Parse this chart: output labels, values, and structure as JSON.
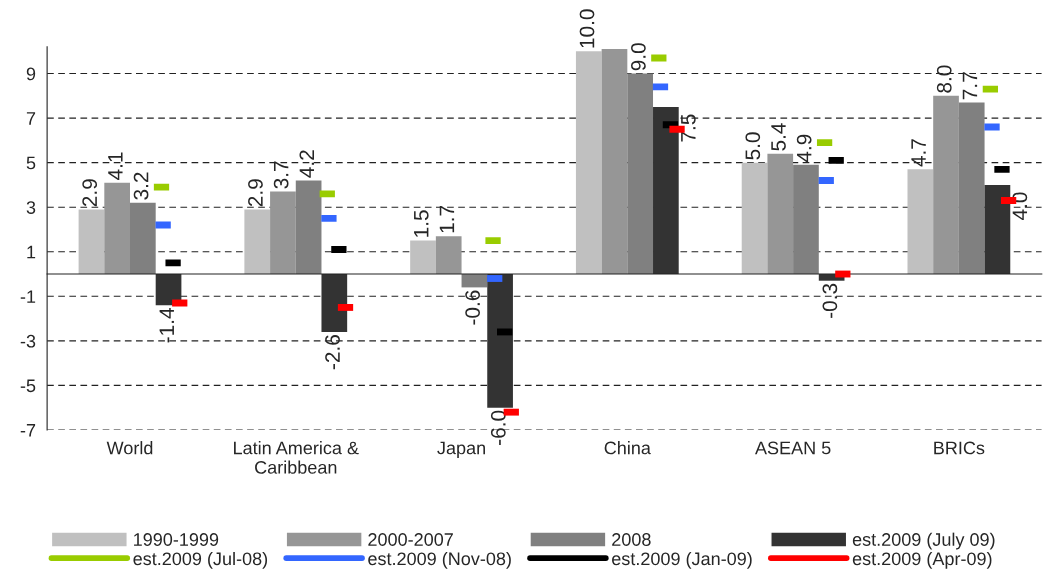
{
  "chart_data": {
    "type": "bar",
    "categories": [
      "World",
      "Latin America &\nCaribbean",
      "Japan",
      "China",
      "ASEAN 5",
      "BRICs"
    ],
    "series": [
      {
        "name": "1990-1999",
        "color": "#c0c0c0",
        "values": [
          2.9,
          2.9,
          1.5,
          10.0,
          5.0,
          4.7
        ],
        "value_labels": [
          "2.9",
          "2.9",
          "1.5",
          "10.0",
          "5.0",
          "4.7"
        ]
      },
      {
        "name": "2000-2007",
        "color": "#969696",
        "values": [
          4.1,
          3.7,
          1.7,
          10.1,
          5.4,
          8.0
        ],
        "value_labels": [
          "4.1",
          "3.7",
          "1.7",
          null,
          "5.4",
          "8.0"
        ]
      },
      {
        "name": "2008",
        "color": "#808080",
        "values": [
          3.2,
          4.2,
          -0.6,
          9.0,
          4.9,
          7.7
        ],
        "value_labels": [
          "3.2",
          "4.2",
          "-0.6",
          "9.0",
          "4.9",
          "7.7"
        ]
      },
      {
        "name": "est.2009 (July 09)",
        "color": "#333333",
        "values": [
          -1.4,
          -2.6,
          -6.0,
          7.5,
          -0.3,
          4.0
        ],
        "value_labels": [
          "-1.4",
          "-2.6",
          "-6.0",
          "7.5",
          "-0.3",
          "4.0"
        ]
      },
      {
        "name": "est.2009 (Jul-08)",
        "type": "scatter",
        "color": "#99cc00",
        "values": [
          3.9,
          3.6,
          1.5,
          9.7,
          5.9,
          8.3
        ]
      },
      {
        "name": "est.2009 (Nov-08)",
        "type": "scatter",
        "color": "#3366ff",
        "values": [
          2.2,
          2.5,
          -0.2,
          8.4,
          4.2,
          6.6
        ]
      },
      {
        "name": "est.2009 (Jan-09)",
        "type": "scatter",
        "color": "#000000",
        "values": [
          0.5,
          1.1,
          -2.6,
          6.7,
          5.1,
          4.7
        ]
      },
      {
        "name": "est.2009 (Apr-09)",
        "type": "scatter",
        "color": "#ff0000",
        "values": [
          -1.3,
          -1.5,
          -6.2,
          6.5,
          0.0,
          3.3
        ]
      }
    ],
    "ylim": [
      -7,
      10.2
    ],
    "yticks": [
      -7,
      -5,
      -3,
      -1,
      1,
      3,
      5,
      7,
      9
    ],
    "grid": "y",
    "legend": "bottom"
  }
}
